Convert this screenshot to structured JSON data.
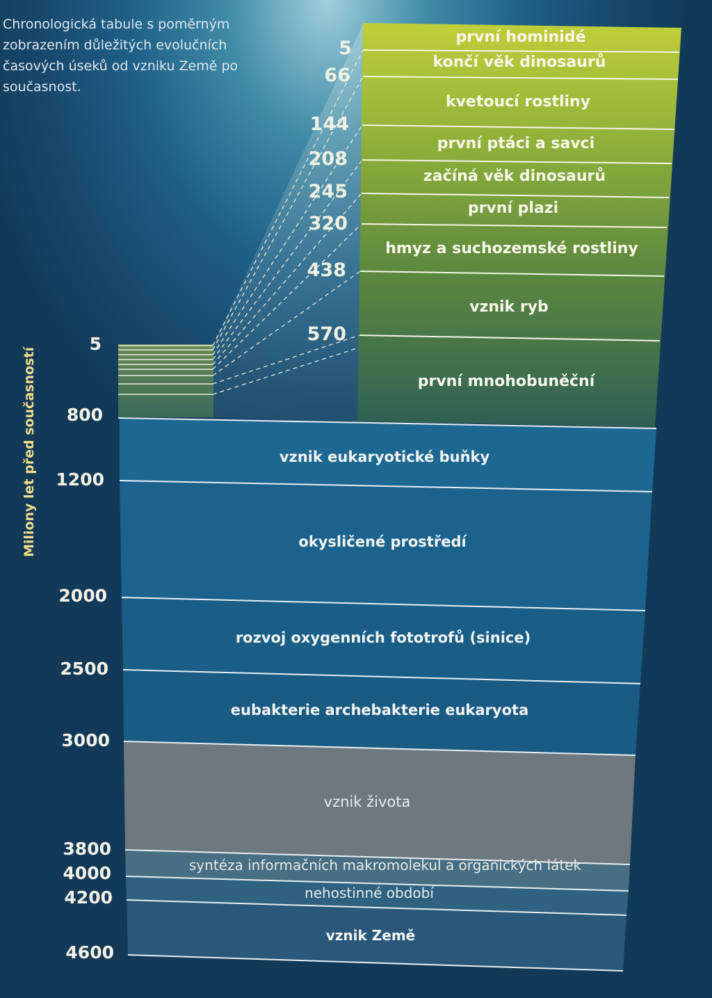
{
  "intro_text": [
    "Chronologická tabule s poměrným",
    "zobrazením důležitých evolučních",
    "časových úseků od vzniku Země po",
    "současnost."
  ],
  "axis_label": "Miliony let před současností",
  "main_ticks": [
    "5",
    "800",
    "1200",
    "2000",
    "2500",
    "3000",
    "3800",
    "4000",
    "4200",
    "4600"
  ],
  "main_bands": [
    "vznik eukaryotické buňky",
    "okysličené prostředí",
    "rozvoj oxygenních fototrofů (sinice)",
    "eubakterie archebakterie eukaryota",
    "vznik života",
    "syntéza informačních makromolekul a organických látek",
    "nehostinné období",
    "vznik Země"
  ],
  "detail_ticks": [
    "5",
    "66",
    "144",
    "208",
    "245",
    "320",
    "438",
    "570"
  ],
  "detail_bands": [
    "první hominidé",
    "končí věk dinosaurů",
    "kvetoucí rostliny",
    "první ptáci a savci",
    "začíná věk dinosaurů",
    "první plazi",
    "hmyz a suchozemské rostliny",
    "vznik ryb",
    "první mnohobuněční"
  ],
  "colors": {
    "main_band_blue": "#1c6792",
    "life_band_gray": "#6f7a80",
    "early_band_blue": "#2d5f7d",
    "detail_top_yellow": "#b9c73a",
    "detail_mid_green": "#7d9a3c",
    "detail_bottom_green": "#3f6a4c",
    "tick_text": "#f4f1e6",
    "axis_label": "#f3dc8a"
  }
}
